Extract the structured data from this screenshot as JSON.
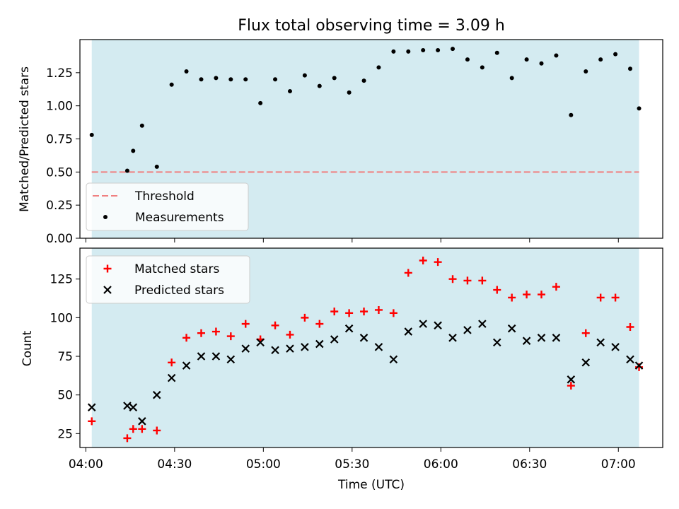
{
  "chart_data": [
    {
      "type": "scatter",
      "title": "Flux total observing time = 3.09 h",
      "xlabel": "",
      "ylabel": "Matched/Predicted stars",
      "xlim": [
        "03:58",
        "07:15"
      ],
      "ylim": [
        0,
        1.5
      ],
      "y_ticks": [
        "0.00",
        "0.25",
        "0.50",
        "0.75",
        "1.00",
        "1.25"
      ],
      "x_ticks": [
        "04:00",
        "04:30",
        "05:00",
        "05:30",
        "06:00",
        "06:30",
        "07:00"
      ],
      "x_ticklabels_shown": false,
      "observing_span": [
        "04:02",
        "07:07"
      ],
      "background_color": "#d4ebf1",
      "legend": {
        "position": "lower left"
      },
      "series": [
        {
          "name": "Threshold",
          "kind": "hline",
          "value": 0.5,
          "color": "#f08080",
          "style": "dashed"
        },
        {
          "name": "Measurements",
          "kind": "points",
          "color": "#000000",
          "x": [
            "04:02",
            "04:14",
            "04:16",
            "04:19",
            "04:24",
            "04:29",
            "04:34",
            "04:39",
            "04:44",
            "04:49",
            "04:54",
            "04:59",
            "05:04",
            "05:09",
            "05:14",
            "05:19",
            "05:24",
            "05:29",
            "05:34",
            "05:39",
            "05:44",
            "05:49",
            "05:54",
            "05:59",
            "06:04",
            "06:09",
            "06:14",
            "06:19",
            "06:24",
            "06:29",
            "06:34",
            "06:39",
            "06:44",
            "06:49",
            "06:54",
            "06:59",
            "07:04",
            "07:07"
          ],
          "y": [
            0.78,
            0.51,
            0.66,
            0.85,
            0.54,
            1.16,
            1.26,
            1.2,
            1.21,
            1.2,
            1.2,
            1.02,
            1.2,
            1.11,
            1.23,
            1.15,
            1.21,
            1.1,
            1.19,
            1.29,
            1.41,
            1.41,
            1.42,
            1.42,
            1.43,
            1.35,
            1.29,
            1.4,
            1.21,
            1.35,
            1.32,
            1.38,
            0.93,
            1.26,
            1.35,
            1.39,
            1.28,
            0.98
          ]
        }
      ]
    },
    {
      "type": "scatter",
      "title": "",
      "xlabel": "Time (UTC)",
      "ylabel": "Count",
      "xlim": [
        "03:58",
        "07:15"
      ],
      "ylim": [
        16,
        145
      ],
      "y_ticks": [
        "25",
        "50",
        "75",
        "100",
        "125"
      ],
      "x_ticks": [
        "04:00",
        "04:30",
        "05:00",
        "05:30",
        "06:00",
        "06:30",
        "07:00"
      ],
      "observing_span": [
        "04:02",
        "07:07"
      ],
      "background_color": "#d4ebf1",
      "legend": {
        "position": "upper left"
      },
      "series": [
        {
          "name": "Matched stars",
          "marker": "+",
          "color": "#ff0000",
          "x": [
            "04:02",
            "04:14",
            "04:16",
            "04:19",
            "04:24",
            "04:29",
            "04:34",
            "04:39",
            "04:44",
            "04:49",
            "04:54",
            "04:59",
            "05:04",
            "05:09",
            "05:14",
            "05:19",
            "05:24",
            "05:29",
            "05:34",
            "05:39",
            "05:44",
            "05:49",
            "05:54",
            "05:59",
            "06:04",
            "06:09",
            "06:14",
            "06:19",
            "06:24",
            "06:29",
            "06:34",
            "06:39",
            "06:44",
            "06:49",
            "06:54",
            "06:59",
            "07:04",
            "07:07"
          ],
          "y": [
            33,
            22,
            28,
            28,
            27,
            71,
            87,
            90,
            91,
            88,
            96,
            86,
            95,
            89,
            100,
            96,
            104,
            103,
            104,
            105,
            103,
            129,
            137,
            136,
            125,
            124,
            124,
            118,
            113,
            115,
            115,
            120,
            56,
            90,
            113,
            113,
            94,
            68
          ]
        },
        {
          "name": "Predicted stars",
          "marker": "x",
          "color": "#000000",
          "x": [
            "04:02",
            "04:14",
            "04:16",
            "04:19",
            "04:24",
            "04:29",
            "04:34",
            "04:39",
            "04:44",
            "04:49",
            "04:54",
            "04:59",
            "05:04",
            "05:09",
            "05:14",
            "05:19",
            "05:24",
            "05:29",
            "05:34",
            "05:39",
            "05:44",
            "05:49",
            "05:54",
            "05:59",
            "06:04",
            "06:09",
            "06:14",
            "06:19",
            "06:24",
            "06:29",
            "06:34",
            "06:39",
            "06:44",
            "06:49",
            "06:54",
            "06:59",
            "07:04",
            "07:07"
          ],
          "y": [
            42,
            43,
            42,
            33,
            50,
            61,
            69,
            75,
            75,
            73,
            80,
            84,
            79,
            80,
            81,
            83,
            86,
            93,
            87,
            81,
            73,
            91,
            96,
            95,
            87,
            92,
            96,
            84,
            93,
            85,
            87,
            87,
            60,
            71,
            84,
            81,
            73,
            69
          ]
        }
      ]
    }
  ]
}
